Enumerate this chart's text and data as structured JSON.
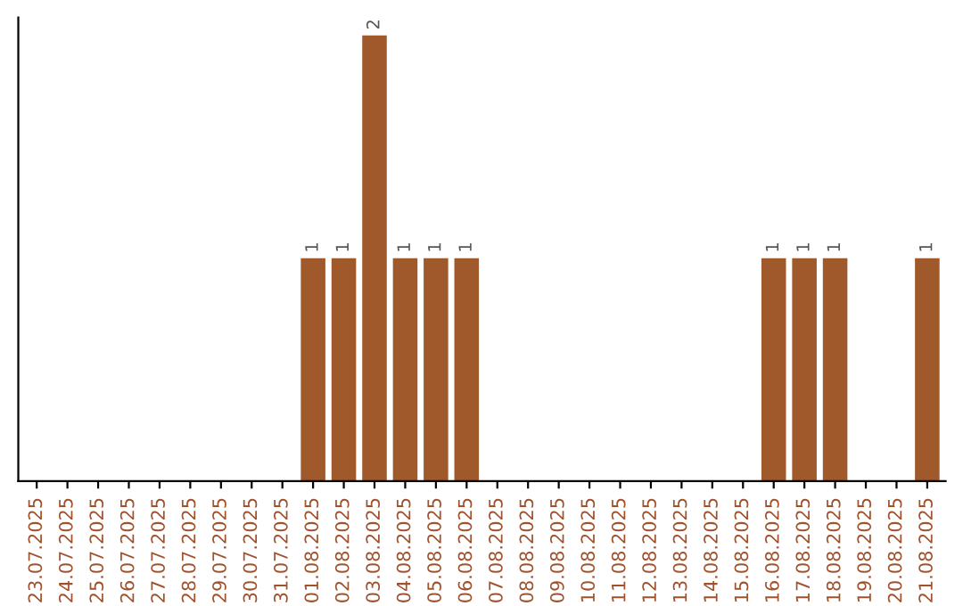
{
  "chart_data": {
    "type": "bar",
    "categories": [
      "23.07.2025",
      "24.07.2025",
      "25.07.2025",
      "26.07.2025",
      "27.07.2025",
      "28.07.2025",
      "29.07.2025",
      "30.07.2025",
      "31.07.2025",
      "01.08.2025",
      "02.08.2025",
      "03.08.2025",
      "04.08.2025",
      "05.08.2025",
      "06.08.2025",
      "07.08.2025",
      "08.08.2025",
      "09.08.2025",
      "10.08.2025",
      "11.08.2025",
      "12.08.2025",
      "13.08.2025",
      "14.08.2025",
      "15.08.2025",
      "16.08.2025",
      "17.08.2025",
      "18.08.2025",
      "19.08.2025",
      "20.08.2025",
      "21.08.2025"
    ],
    "values": [
      0,
      0,
      0,
      0,
      0,
      0,
      0,
      0,
      0,
      1,
      1,
      2,
      1,
      1,
      1,
      0,
      0,
      0,
      0,
      0,
      0,
      0,
      0,
      0,
      1,
      1,
      1,
      0,
      0,
      1
    ],
    "value_labels": [
      null,
      null,
      null,
      null,
      null,
      null,
      null,
      null,
      null,
      "1",
      "1",
      "2",
      "1",
      "1",
      "1",
      null,
      null,
      null,
      null,
      null,
      null,
      null,
      null,
      null,
      "1",
      "1",
      "1",
      null,
      null,
      "1"
    ],
    "color": "#a0592a",
    "tick_labels": "x",
    "grid": false,
    "legend": false
  }
}
